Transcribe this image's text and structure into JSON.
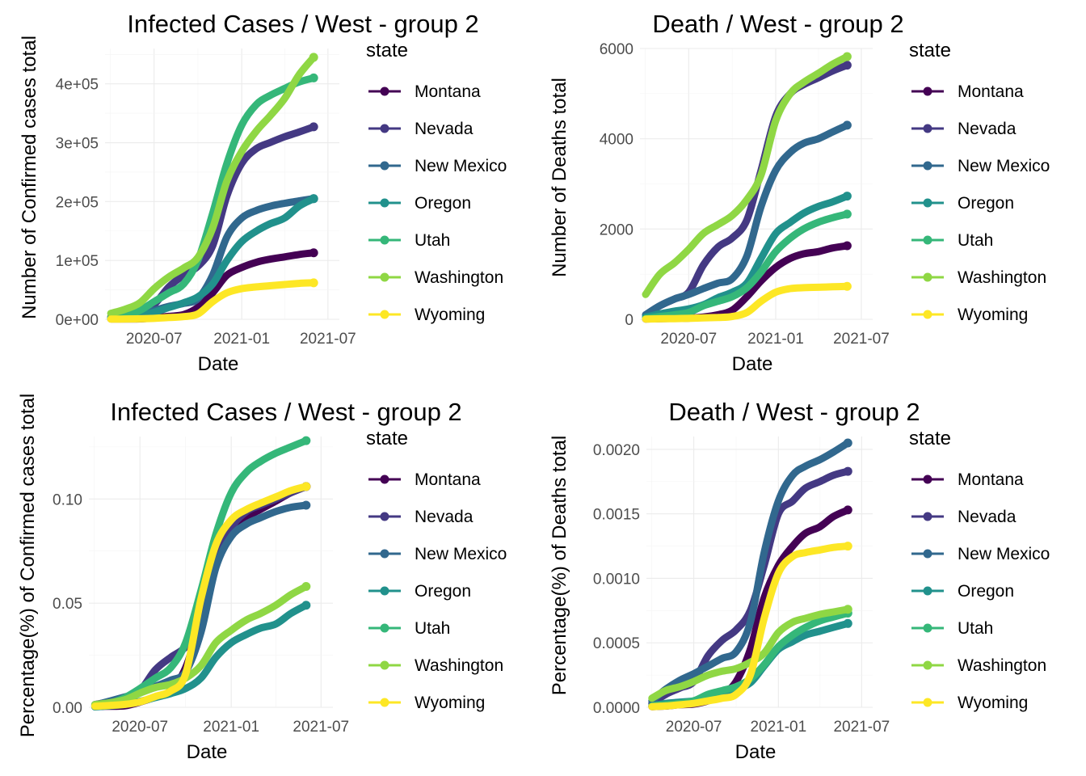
{
  "chart_data": [
    {
      "type": "line",
      "title": "Infected Cases / West - group 2",
      "xlabel": "Date",
      "ylabel": "Number of Confirmed cases total",
      "x_ticks": [
        "2020-07",
        "2021-01",
        "2021-07"
      ],
      "y_ticks": [
        "0e+00",
        "1e+05",
        "2e+05",
        "3e+05",
        "4e+05"
      ],
      "ylim": [
        0,
        460000
      ],
      "legend_title": "state",
      "legend_position": "right",
      "x": [
        "2020-04-01",
        "2020-05-01",
        "2020-06-01",
        "2020-07-01",
        "2020-08-01",
        "2020-09-01",
        "2020-10-01",
        "2020-11-01",
        "2020-12-01",
        "2021-01-01",
        "2021-02-01",
        "2021-03-01",
        "2021-04-01",
        "2021-05-01",
        "2021-06-01"
      ],
      "series": [
        {
          "name": "Montana",
          "color": "#440154",
          "values": [
            500,
            500,
            700,
            2500,
            5000,
            8000,
            20000,
            45000,
            75000,
            88000,
            97000,
            102000,
            106000,
            110000,
            113000
          ]
        },
        {
          "name": "Nevada",
          "color": "#443983",
          "values": [
            4000,
            8000,
            12000,
            25000,
            55000,
            75000,
            90000,
            125000,
            210000,
            265000,
            290000,
            300000,
            310000,
            318000,
            327000
          ]
        },
        {
          "name": "New Mexico",
          "color": "#31688e",
          "values": [
            2000,
            6000,
            10000,
            15000,
            22000,
            27000,
            35000,
            75000,
            140000,
            172000,
            185000,
            192000,
            197000,
            201000,
            205000
          ]
        },
        {
          "name": "Oregon",
          "color": "#21918c",
          "values": [
            1000,
            3000,
            6000,
            12000,
            20000,
            28000,
            38000,
            60000,
            100000,
            132000,
            150000,
            162000,
            172000,
            192000,
            205000
          ]
        },
        {
          "name": "Utah",
          "color": "#35b779",
          "values": [
            2500,
            6000,
            15000,
            30000,
            45000,
            60000,
            100000,
            180000,
            265000,
            330000,
            365000,
            380000,
            392000,
            403000,
            410000
          ]
        },
        {
          "name": "Washington",
          "color": "#8fd744",
          "values": [
            10000,
            17000,
            28000,
            52000,
            72000,
            87000,
            105000,
            155000,
            235000,
            285000,
            320000,
            345000,
            375000,
            415000,
            445000
          ]
        },
        {
          "name": "Wyoming",
          "color": "#fde725",
          "values": [
            300,
            500,
            800,
            1500,
            3000,
            4500,
            9000,
            30000,
            45000,
            52000,
            55000,
            57000,
            59000,
            61000,
            62000
          ]
        }
      ]
    },
    {
      "type": "line",
      "title": "Death / West - group 2",
      "xlabel": "Date",
      "ylabel": "Number of Deaths total",
      "x_ticks": [
        "2020-07",
        "2021-01",
        "2021-07"
      ],
      "y_ticks": [
        "0",
        "2000",
        "4000",
        "6000"
      ],
      "ylim": [
        0,
        6000
      ],
      "legend_title": "state",
      "legend_position": "right",
      "x": [
        "2020-04-01",
        "2020-05-01",
        "2020-06-01",
        "2020-07-01",
        "2020-08-01",
        "2020-09-01",
        "2020-10-01",
        "2020-11-01",
        "2020-12-01",
        "2021-01-01",
        "2021-02-01",
        "2021-03-01",
        "2021-04-01",
        "2021-05-01",
        "2021-06-01"
      ],
      "series": [
        {
          "name": "Montana",
          "color": "#440154",
          "values": [
            5,
            15,
            20,
            25,
            50,
            100,
            200,
            500,
            850,
            1150,
            1350,
            1450,
            1500,
            1580,
            1630
          ]
        },
        {
          "name": "Nevada",
          "color": "#443983",
          "values": [
            100,
            300,
            450,
            600,
            1200,
            1600,
            1800,
            2200,
            3300,
            4500,
            5000,
            5200,
            5350,
            5500,
            5630
          ]
        },
        {
          "name": "New Mexico",
          "color": "#31688e",
          "values": [
            100,
            300,
            450,
            550,
            680,
            800,
            900,
            1400,
            2500,
            3300,
            3700,
            3900,
            4000,
            4150,
            4300
          ]
        },
        {
          "name": "Oregon",
          "color": "#21918c",
          "values": [
            50,
            120,
            180,
            230,
            320,
            480,
            600,
            800,
            1350,
            1900,
            2150,
            2350,
            2500,
            2600,
            2730
          ]
        },
        {
          "name": "Utah",
          "color": "#35b779",
          "values": [
            20,
            60,
            100,
            150,
            300,
            400,
            500,
            700,
            1050,
            1500,
            1800,
            2000,
            2150,
            2250,
            2330
          ]
        },
        {
          "name": "Washington",
          "color": "#8fd744",
          "values": [
            550,
            1000,
            1250,
            1550,
            1900,
            2100,
            2300,
            2650,
            3200,
            4400,
            5000,
            5250,
            5450,
            5650,
            5820
          ]
        },
        {
          "name": "Wyoming",
          "color": "#fde725",
          "values": [
            5,
            10,
            15,
            20,
            30,
            40,
            60,
            150,
            400,
            600,
            680,
            700,
            710,
            720,
            730
          ]
        }
      ]
    },
    {
      "type": "line",
      "title": "Infected Cases / West - group 2",
      "xlabel": "Date",
      "ylabel": "Percentage(%) of Confirmed cases total",
      "x_ticks": [
        "2020-07",
        "2021-01",
        "2021-07"
      ],
      "y_ticks": [
        "0.00",
        "0.05",
        "0.10"
      ],
      "ylim": [
        0,
        0.13
      ],
      "legend_title": "state",
      "legend_position": "right",
      "x": [
        "2020-04-01",
        "2020-05-01",
        "2020-06-01",
        "2020-07-01",
        "2020-08-01",
        "2020-09-01",
        "2020-10-01",
        "2020-11-01",
        "2020-12-01",
        "2021-01-01",
        "2021-02-01",
        "2021-03-01",
        "2021-04-01",
        "2021-05-01",
        "2021-06-01"
      ],
      "series": [
        {
          "name": "Montana",
          "color": "#440154",
          "values": [
            0.0004,
            0.0005,
            0.0007,
            0.0025,
            0.005,
            0.008,
            0.019,
            0.042,
            0.07,
            0.083,
            0.091,
            0.095,
            0.099,
            0.103,
            0.106
          ]
        },
        {
          "name": "Nevada",
          "color": "#443983",
          "values": [
            0.0013,
            0.0026,
            0.004,
            0.008,
            0.018,
            0.024,
            0.029,
            0.04,
            0.068,
            0.086,
            0.094,
            0.097,
            0.1,
            0.103,
            0.106
          ]
        },
        {
          "name": "New Mexico",
          "color": "#31688e",
          "values": [
            0.001,
            0.003,
            0.005,
            0.007,
            0.01,
            0.013,
            0.017,
            0.036,
            0.067,
            0.082,
            0.088,
            0.091,
            0.094,
            0.096,
            0.097
          ]
        },
        {
          "name": "Oregon",
          "color": "#21918c",
          "values": [
            0.0002,
            0.0007,
            0.0014,
            0.0028,
            0.0047,
            0.0066,
            0.009,
            0.014,
            0.024,
            0.031,
            0.035,
            0.038,
            0.04,
            0.045,
            0.049
          ]
        },
        {
          "name": "Utah",
          "color": "#35b779",
          "values": [
            0.0008,
            0.0019,
            0.0047,
            0.009,
            0.014,
            0.019,
            0.031,
            0.056,
            0.083,
            0.103,
            0.113,
            0.118,
            0.122,
            0.125,
            0.128
          ]
        },
        {
          "name": "Washington",
          "color": "#8fd744",
          "values": [
            0.0013,
            0.0022,
            0.0037,
            0.0068,
            0.0095,
            0.011,
            0.014,
            0.02,
            0.031,
            0.037,
            0.042,
            0.045,
            0.049,
            0.054,
            0.058
          ]
        },
        {
          "name": "Wyoming",
          "color": "#fde725",
          "values": [
            0.0005,
            0.0009,
            0.0014,
            0.0026,
            0.0052,
            0.0078,
            0.016,
            0.052,
            0.078,
            0.09,
            0.095,
            0.098,
            0.101,
            0.104,
            0.106
          ]
        }
      ]
    },
    {
      "type": "line",
      "title": "Death / West - group 2",
      "xlabel": "Date",
      "ylabel": "Percentage(%) of Deaths total",
      "x_ticks": [
        "2020-07",
        "2021-01",
        "2021-07"
      ],
      "y_ticks": [
        "0.0000",
        "0.0005",
        "0.0010",
        "0.0015",
        "0.0020"
      ],
      "ylim": [
        0,
        0.0021
      ],
      "legend_title": "state",
      "legend_position": "right",
      "x": [
        "2020-04-01",
        "2020-05-01",
        "2020-06-01",
        "2020-07-01",
        "2020-08-01",
        "2020-09-01",
        "2020-10-01",
        "2020-11-01",
        "2020-12-01",
        "2021-01-01",
        "2021-02-01",
        "2021-03-01",
        "2021-04-01",
        "2021-05-01",
        "2021-06-01"
      ],
      "series": [
        {
          "name": "Montana",
          "color": "#440154",
          "values": [
            5e-06,
            1e-05,
            2e-05,
            2.5e-05,
            5e-05,
            0.0001,
            0.0002,
            0.00045,
            0.00085,
            0.0011,
            0.00125,
            0.00135,
            0.0014,
            0.00148,
            0.00153
          ]
        },
        {
          "name": "Nevada",
          "color": "#443983",
          "values": [
            3e-05,
            0.0001,
            0.00015,
            0.0002,
            0.0004,
            0.00052,
            0.0006,
            0.00075,
            0.0011,
            0.0015,
            0.0016,
            0.0017,
            0.00175,
            0.0018,
            0.00183
          ]
        },
        {
          "name": "New Mexico",
          "color": "#31688e",
          "values": [
            5e-05,
            0.00014,
            0.00021,
            0.00026,
            0.00032,
            0.00038,
            0.00043,
            0.00066,
            0.0012,
            0.0016,
            0.0018,
            0.00187,
            0.00192,
            0.00198,
            0.00205
          ]
        },
        {
          "name": "Oregon",
          "color": "#21918c",
          "values": [
            1e-05,
            3e-05,
            4e-05,
            5e-05,
            8e-05,
            0.00011,
            0.00014,
            0.00019,
            0.00032,
            0.00045,
            0.00051,
            0.00056,
            0.00059,
            0.00062,
            0.00065
          ]
        },
        {
          "name": "Utah",
          "color": "#35b779",
          "values": [
            1e-05,
            2e-05,
            3e-05,
            5e-05,
            0.0001,
            0.00013,
            0.00016,
            0.00022,
            0.00033,
            0.00047,
            0.00056,
            0.00062,
            0.00067,
            0.0007,
            0.00073
          ]
        },
        {
          "name": "Washington",
          "color": "#8fd744",
          "values": [
            7e-05,
            0.00013,
            0.00016,
            0.0002,
            0.00025,
            0.00028,
            0.0003,
            0.00035,
            0.00042,
            0.00058,
            0.00066,
            0.00069,
            0.00072,
            0.00074,
            0.00076
          ]
        },
        {
          "name": "Wyoming",
          "color": "#fde725",
          "values": [
            5e-06,
            1e-05,
            2e-05,
            3e-05,
            5e-05,
            7e-05,
            0.0001,
            0.00025,
            0.00069,
            0.00104,
            0.00117,
            0.0012,
            0.00122,
            0.00124,
            0.00125
          ]
        }
      ]
    }
  ]
}
